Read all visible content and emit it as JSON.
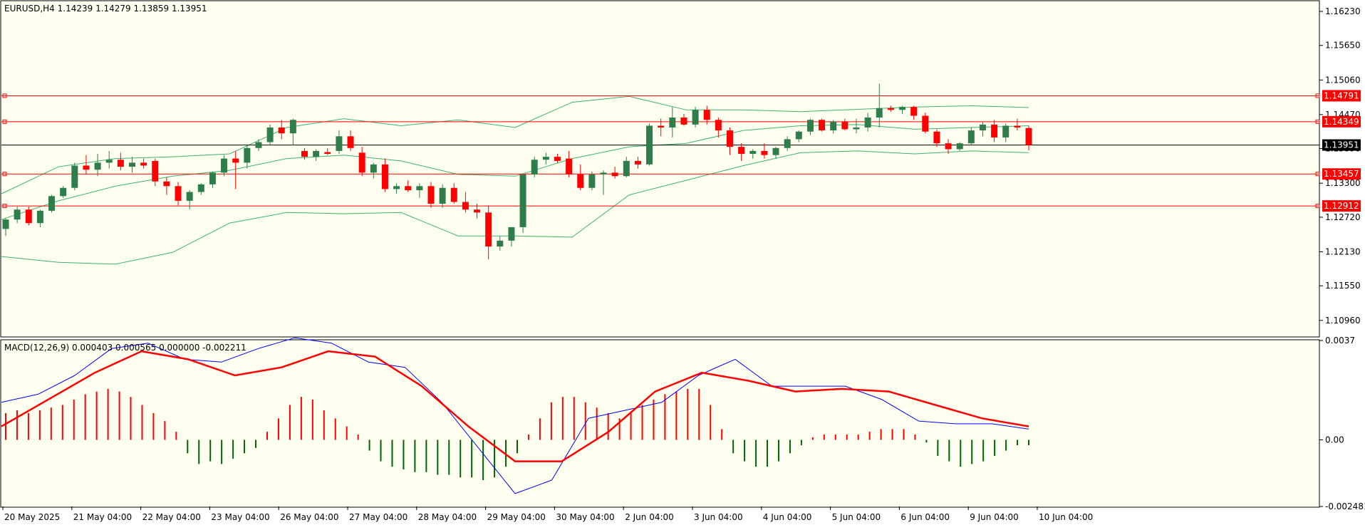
{
  "symbol_header": "EURUSD,H4  1.14239 1.14279 1.13859 1.13951",
  "macd_header": "MACD(12,26,9) 0.000403 0.000565 0.000000 -0.002211",
  "colors": {
    "background": "#fffff0",
    "bull_candle": "#2e7d4a",
    "bear_candle": "#ff0000",
    "bollinger": "#3cb371",
    "level_line": "#ff0000",
    "macd_line": "#0000ff",
    "signal_line": "#ff0000",
    "hist_pos": "#ff0000",
    "hist_neg": "#006400",
    "current_price_bg": "#000000"
  },
  "chart_data": {
    "type": "candlestick",
    "price_axis": {
      "ticks": [
        "1.16230",
        "1.15650",
        "1.15060",
        "1.14470",
        "1.13890",
        "1.13300",
        "1.12720",
        "1.12130",
        "1.11550",
        "1.10960"
      ],
      "range": [
        1.1069,
        1.164
      ]
    },
    "time_axis": {
      "ticks": [
        "20 May 2025",
        "21 May 04:00",
        "22 May 04:00",
        "23 May 04:00",
        "26 May 04:00",
        "27 May 04:00",
        "28 May 04:00",
        "29 May 04:00",
        "30 May 04:00",
        "2 Jun 04:00",
        "3 Jun 04:00",
        "4 Jun 04:00",
        "5 Jun 04:00",
        "6 Jun 04:00",
        "9 Jun 04:00",
        "10 Jun 04:00"
      ]
    },
    "levels": [
      {
        "label": "1.14791",
        "value": 1.14791
      },
      {
        "label": "1.14349",
        "value": 1.14349
      },
      {
        "label": "1.13457",
        "value": 1.13457
      },
      {
        "label": "1.12912",
        "value": 1.12912
      }
    ],
    "current_price": {
      "label": "1.13951",
      "value": 1.13951
    },
    "candles": [
      {
        "o": 1.1252,
        "h": 1.127,
        "l": 1.124,
        "c": 1.1268
      },
      {
        "o": 1.1268,
        "h": 1.129,
        "l": 1.1262,
        "c": 1.1285
      },
      {
        "o": 1.1285,
        "h": 1.129,
        "l": 1.1258,
        "c": 1.1262
      },
      {
        "o": 1.1262,
        "h": 1.1285,
        "l": 1.1255,
        "c": 1.1283
      },
      {
        "o": 1.1283,
        "h": 1.131,
        "l": 1.128,
        "c": 1.1308
      },
      {
        "o": 1.1308,
        "h": 1.1325,
        "l": 1.1305,
        "c": 1.1322
      },
      {
        "o": 1.1322,
        "h": 1.1365,
        "l": 1.1318,
        "c": 1.136
      },
      {
        "o": 1.136,
        "h": 1.1378,
        "l": 1.1345,
        "c": 1.1353
      },
      {
        "o": 1.1353,
        "h": 1.138,
        "l": 1.1342,
        "c": 1.1365
      },
      {
        "o": 1.1365,
        "h": 1.1385,
        "l": 1.1355,
        "c": 1.137
      },
      {
        "o": 1.137,
        "h": 1.1382,
        "l": 1.1352,
        "c": 1.1358
      },
      {
        "o": 1.1358,
        "h": 1.1375,
        "l": 1.1348,
        "c": 1.1365
      },
      {
        "o": 1.1365,
        "h": 1.1372,
        "l": 1.1355,
        "c": 1.136
      },
      {
        "o": 1.1368,
        "h": 1.1372,
        "l": 1.1325,
        "c": 1.1333
      },
      {
        "o": 1.1333,
        "h": 1.134,
        "l": 1.131,
        "c": 1.1325
      },
      {
        "o": 1.1325,
        "h": 1.1332,
        "l": 1.1292,
        "c": 1.13
      },
      {
        "o": 1.13,
        "h": 1.1318,
        "l": 1.1285,
        "c": 1.1315
      },
      {
        "o": 1.1315,
        "h": 1.133,
        "l": 1.131,
        "c": 1.1328
      },
      {
        "o": 1.1328,
        "h": 1.135,
        "l": 1.1322,
        "c": 1.1348
      },
      {
        "o": 1.1348,
        "h": 1.1378,
        "l": 1.1342,
        "c": 1.1372
      },
      {
        "o": 1.1372,
        "h": 1.1385,
        "l": 1.132,
        "c": 1.1365
      },
      {
        "o": 1.1365,
        "h": 1.1395,
        "l": 1.1355,
        "c": 1.139
      },
      {
        "o": 1.139,
        "h": 1.1405,
        "l": 1.1385,
        "c": 1.14
      },
      {
        "o": 1.14,
        "h": 1.143,
        "l": 1.1395,
        "c": 1.1425
      },
      {
        "o": 1.1425,
        "h": 1.1438,
        "l": 1.1405,
        "c": 1.1415
      },
      {
        "o": 1.1415,
        "h": 1.144,
        "l": 1.1395,
        "c": 1.1438
      },
      {
        "o": 1.1385,
        "h": 1.139,
        "l": 1.137,
        "c": 1.1375
      },
      {
        "o": 1.1375,
        "h": 1.1388,
        "l": 1.1368,
        "c": 1.1385
      },
      {
        "o": 1.1383,
        "h": 1.139,
        "l": 1.1378,
        "c": 1.138
      },
      {
        "o": 1.1385,
        "h": 1.142,
        "l": 1.138,
        "c": 1.141
      },
      {
        "o": 1.141,
        "h": 1.142,
        "l": 1.1385,
        "c": 1.139
      },
      {
        "o": 1.1382,
        "h": 1.1392,
        "l": 1.1342,
        "c": 1.1348
      },
      {
        "o": 1.1348,
        "h": 1.1365,
        "l": 1.1338,
        "c": 1.1362
      },
      {
        "o": 1.1362,
        "h": 1.1372,
        "l": 1.1315,
        "c": 1.132
      },
      {
        "o": 1.132,
        "h": 1.133,
        "l": 1.1312,
        "c": 1.1325
      },
      {
        "o": 1.1325,
        "h": 1.1335,
        "l": 1.1315,
        "c": 1.1318
      },
      {
        "o": 1.1318,
        "h": 1.133,
        "l": 1.1305,
        "c": 1.1325
      },
      {
        "o": 1.1325,
        "h": 1.1332,
        "l": 1.1288,
        "c": 1.1295
      },
      {
        "o": 1.1295,
        "h": 1.1328,
        "l": 1.1288,
        "c": 1.1322
      },
      {
        "o": 1.1322,
        "h": 1.133,
        "l": 1.1295,
        "c": 1.1298
      },
      {
        "o": 1.1298,
        "h": 1.1315,
        "l": 1.128,
        "c": 1.1285
      },
      {
        "o": 1.1285,
        "h": 1.1295,
        "l": 1.127,
        "c": 1.128
      },
      {
        "o": 1.128,
        "h": 1.1292,
        "l": 1.12,
        "c": 1.1222
      },
      {
        "o": 1.1222,
        "h": 1.124,
        "l": 1.1215,
        "c": 1.1232
      },
      {
        "o": 1.1232,
        "h": 1.1255,
        "l": 1.1222,
        "c": 1.1255
      },
      {
        "o": 1.1255,
        "h": 1.1345,
        "l": 1.1245,
        "c": 1.1345
      },
      {
        "o": 1.1345,
        "h": 1.1375,
        "l": 1.134,
        "c": 1.137
      },
      {
        "o": 1.137,
        "h": 1.1382,
        "l": 1.1362,
        "c": 1.1375
      },
      {
        "o": 1.1375,
        "h": 1.138,
        "l": 1.1365,
        "c": 1.1368
      },
      {
        "o": 1.1372,
        "h": 1.1385,
        "l": 1.134,
        "c": 1.1345
      },
      {
        "o": 1.1345,
        "h": 1.1362,
        "l": 1.1318,
        "c": 1.1322
      },
      {
        "o": 1.1322,
        "h": 1.135,
        "l": 1.1318,
        "c": 1.1345
      },
      {
        "o": 1.1345,
        "h": 1.1352,
        "l": 1.131,
        "c": 1.1348
      },
      {
        "o": 1.1348,
        "h": 1.1358,
        "l": 1.1338,
        "c": 1.1342
      },
      {
        "o": 1.1342,
        "h": 1.1375,
        "l": 1.134,
        "c": 1.1368
      },
      {
        "o": 1.1368,
        "h": 1.1375,
        "l": 1.1355,
        "c": 1.1362
      },
      {
        "o": 1.1362,
        "h": 1.1432,
        "l": 1.136,
        "c": 1.1428
      },
      {
        "o": 1.1428,
        "h": 1.144,
        "l": 1.141,
        "c": 1.1425
      },
      {
        "o": 1.1425,
        "h": 1.146,
        "l": 1.1408,
        "c": 1.1442
      },
      {
        "o": 1.1442,
        "h": 1.1448,
        "l": 1.1428,
        "c": 1.143
      },
      {
        "o": 1.143,
        "h": 1.146,
        "l": 1.1425,
        "c": 1.1455
      },
      {
        "o": 1.1455,
        "h": 1.1462,
        "l": 1.143,
        "c": 1.1438
      },
      {
        "o": 1.1438,
        "h": 1.1442,
        "l": 1.1408,
        "c": 1.142
      },
      {
        "o": 1.142,
        "h": 1.1425,
        "l": 1.1378,
        "c": 1.1392
      },
      {
        "o": 1.1392,
        "h": 1.1398,
        "l": 1.1368,
        "c": 1.138
      },
      {
        "o": 1.138,
        "h": 1.1388,
        "l": 1.1372,
        "c": 1.1385
      },
      {
        "o": 1.1385,
        "h": 1.1398,
        "l": 1.1372,
        "c": 1.1378
      },
      {
        "o": 1.1378,
        "h": 1.1392,
        "l": 1.1372,
        "c": 1.139
      },
      {
        "o": 1.139,
        "h": 1.141,
        "l": 1.1385,
        "c": 1.1405
      },
      {
        "o": 1.1405,
        "h": 1.142,
        "l": 1.14,
        "c": 1.1418
      },
      {
        "o": 1.1418,
        "h": 1.144,
        "l": 1.1412,
        "c": 1.1438
      },
      {
        "o": 1.1438,
        "h": 1.144,
        "l": 1.1418,
        "c": 1.142
      },
      {
        "o": 1.142,
        "h": 1.1438,
        "l": 1.1415,
        "c": 1.1435
      },
      {
        "o": 1.1435,
        "h": 1.144,
        "l": 1.142,
        "c": 1.1422
      },
      {
        "o": 1.1422,
        "h": 1.144,
        "l": 1.1415,
        "c": 1.1425
      },
      {
        "o": 1.1425,
        "h": 1.145,
        "l": 1.1418,
        "c": 1.1442
      },
      {
        "o": 1.1442,
        "h": 1.15,
        "l": 1.1425,
        "c": 1.1458
      },
      {
        "o": 1.1458,
        "h": 1.1462,
        "l": 1.1452,
        "c": 1.1455
      },
      {
        "o": 1.1455,
        "h": 1.1462,
        "l": 1.1448,
        "c": 1.146
      },
      {
        "o": 1.146,
        "h": 1.1462,
        "l": 1.1438,
        "c": 1.1445
      },
      {
        "o": 1.1445,
        "h": 1.145,
        "l": 1.1415,
        "c": 1.1418
      },
      {
        "o": 1.1418,
        "h": 1.1422,
        "l": 1.1392,
        "c": 1.1398
      },
      {
        "o": 1.1398,
        "h": 1.1405,
        "l": 1.138,
        "c": 1.1388
      },
      {
        "o": 1.1388,
        "h": 1.14,
        "l": 1.1385,
        "c": 1.1398
      },
      {
        "o": 1.1398,
        "h": 1.1425,
        "l": 1.1395,
        "c": 1.142
      },
      {
        "o": 1.142,
        "h": 1.1435,
        "l": 1.141,
        "c": 1.143
      },
      {
        "o": 1.143,
        "h": 1.1438,
        "l": 1.14,
        "c": 1.1408
      },
      {
        "o": 1.1408,
        "h": 1.1432,
        "l": 1.14,
        "c": 1.1428
      },
      {
        "o": 1.1428,
        "h": 1.144,
        "l": 1.142,
        "c": 1.1425
      },
      {
        "o": 1.1424,
        "h": 1.1428,
        "l": 1.1386,
        "c": 1.1395
      }
    ],
    "bollinger": {
      "upper": [
        1.1312,
        1.1358,
        1.1372,
        1.1375,
        1.138,
        1.1425,
        1.144,
        1.1428,
        1.1438,
        1.1425,
        1.1468,
        1.1478,
        1.1455,
        1.1455,
        1.1452,
        1.1456,
        1.146,
        1.1462,
        1.1459
      ],
      "middle": [
        1.1268,
        1.13,
        1.1325,
        1.1342,
        1.1352,
        1.1372,
        1.1378,
        1.1368,
        1.1345,
        1.1342,
        1.1372,
        1.1392,
        1.1398,
        1.142,
        1.1428,
        1.143,
        1.1422,
        1.1425,
        1.1428
      ],
      "lower": [
        1.1205,
        1.1195,
        1.1192,
        1.1212,
        1.1262,
        1.128,
        1.1278,
        1.128,
        1.124,
        1.124,
        1.1238,
        1.131,
        1.1335,
        1.136,
        1.1382,
        1.1385,
        1.138,
        1.1385,
        1.1382
      ]
    },
    "macd": {
      "axis_ticks": [
        "0.0037",
        "0.00",
        "-0.002481"
      ],
      "range": [
        -0.002481,
        0.0037
      ],
      "histogram": [
        0.001,
        0.0011,
        0.001,
        0.0011,
        0.0012,
        0.0013,
        0.0015,
        0.0017,
        0.0018,
        0.0019,
        0.0018,
        0.0016,
        0.0013,
        0.001,
        0.0007,
        0.0003,
        -0.0005,
        -0.0009,
        -0.0008,
        -0.0009,
        -0.0007,
        -0.0005,
        -0.0003,
        0.0003,
        0.0008,
        0.0013,
        0.0016,
        0.0015,
        0.0011,
        0.0008,
        0.0005,
        0.0002,
        -0.0004,
        -0.0008,
        -0.001,
        -0.0011,
        -0.0012,
        -0.0012,
        -0.0013,
        -0.0013,
        -0.0014,
        -0.0014,
        -0.0015,
        -0.0014,
        -0.001,
        -0.0005,
        0.0002,
        0.0008,
        0.0014,
        0.0016,
        0.0016,
        0.0014,
        0.0012,
        0.001,
        0.0008,
        0.001,
        0.0013,
        0.0015,
        0.0017,
        0.0018,
        0.0019,
        0.0019,
        0.0013,
        0.0004,
        -0.0005,
        -0.0008,
        -0.001,
        -0.001,
        -0.0008,
        -0.0005,
        -0.0002,
        0.0001,
        0.0002,
        0.0002,
        0.0002,
        0.0002,
        0.0003,
        0.0004,
        0.0004,
        0.0004,
        0.0002,
        -0.0001,
        -0.0006,
        -0.0008,
        -0.001,
        -0.0009,
        -0.0008,
        -0.0006,
        -0.0004,
        -0.0002,
        -0.0002
      ],
      "macd_line": [
        0.0014,
        0.0017,
        0.0024,
        0.0034,
        0.0036,
        0.003,
        0.0029,
        0.0034,
        0.0038,
        0.0036,
        0.0029,
        0.0027,
        0.0014,
        -0.0003,
        -0.002,
        -0.0015,
        0.0008,
        0.0011,
        0.0014,
        0.0024,
        0.003,
        0.002,
        0.002,
        0.002,
        0.0015,
        0.0007,
        0.0006,
        0.0006,
        0.0004
      ],
      "signal_line": [
        0.0005,
        0.0015,
        0.0025,
        0.0033,
        0.003,
        0.0024,
        0.0027,
        0.0033,
        0.0031,
        0.002,
        0.0005,
        -0.0008,
        -0.0008,
        0.0003,
        0.0018,
        0.0025,
        0.0022,
        0.0018,
        0.0019,
        0.0018,
        0.0013,
        0.0008,
        0.0005
      ]
    }
  }
}
